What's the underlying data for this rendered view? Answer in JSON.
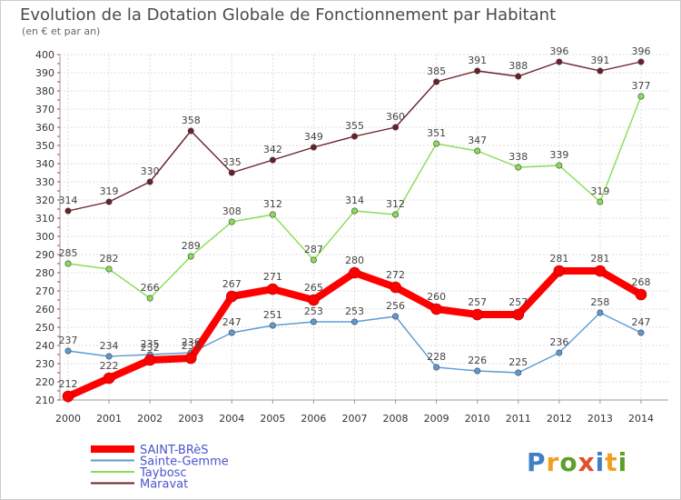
{
  "chart_data": {
    "type": "line",
    "title": "Evolution de la Dotation Globale de Fonctionnement par Habitant",
    "subtitle": "(en € et par an)",
    "x": [
      "2000",
      "2001",
      "2002",
      "2003",
      "2004",
      "2005",
      "2006",
      "2007",
      "2008",
      "2009",
      "2010",
      "2011",
      "2012",
      "2013",
      "2014"
    ],
    "ylim": [
      210,
      400
    ],
    "yticks": [
      210,
      220,
      230,
      240,
      250,
      260,
      270,
      280,
      290,
      300,
      310,
      320,
      330,
      340,
      350,
      360,
      370,
      380,
      390,
      400
    ],
    "grid": true,
    "legend_position": "bottom-left",
    "series": [
      {
        "name": "SAINT-BRèS",
        "color": "#ff0000",
        "values": [
          212,
          222,
          232,
          233,
          267,
          271,
          265,
          280,
          272,
          260,
          257,
          257,
          281,
          281,
          268
        ]
      },
      {
        "name": "Sainte-Gemme",
        "color": "#5b9bd5",
        "values": [
          237,
          234,
          235,
          236,
          247,
          251,
          253,
          253,
          256,
          228,
          226,
          225,
          236,
          258,
          247
        ]
      },
      {
        "name": "Taybosc",
        "color": "#88dd55",
        "values": [
          285,
          282,
          266,
          289,
          308,
          312,
          287,
          314,
          312,
          351,
          347,
          338,
          339,
          319,
          377
        ]
      },
      {
        "name": "Maravat",
        "color": "#6b1f2a",
        "values": [
          314,
          319,
          330,
          358,
          335,
          342,
          349,
          355,
          360,
          385,
          391,
          388,
          396,
          391,
          396
        ]
      }
    ]
  },
  "logo": {
    "text": "Proxiti"
  }
}
